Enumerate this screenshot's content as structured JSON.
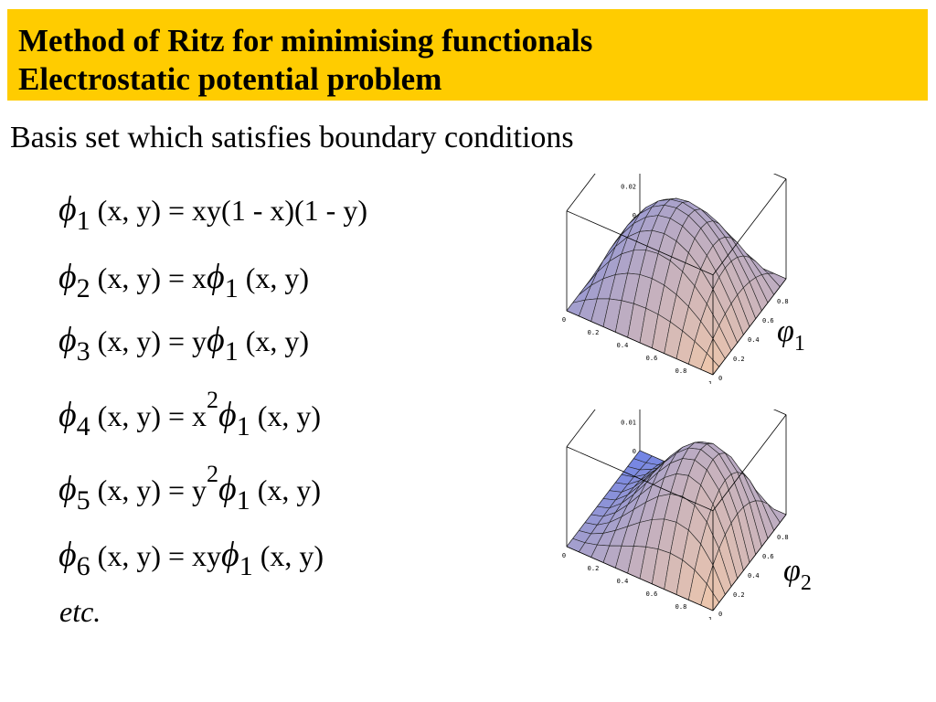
{
  "header": {
    "title_line1": "Method of Ritz for minimising functionals",
    "title_line2": "Electrostatic potential problem",
    "background_color": "#ffcc00"
  },
  "subtitle": "Basis set which satisfies boundary conditions",
  "equations": [
    {
      "sub": "1",
      "lhs": "(x, y) = ",
      "rhs_pre": "xy(1 - x)(1 - y)",
      "rhs_sup": "",
      "rhs_phi_sub": "",
      "rhs_post": ""
    },
    {
      "sub": "2",
      "lhs": "(x, y) = ",
      "rhs_pre": "x",
      "rhs_sup": "",
      "rhs_phi_sub": "1",
      "rhs_post": "(x, y)"
    },
    {
      "sub": "3",
      "lhs": "(x, y) = ",
      "rhs_pre": "y",
      "rhs_sup": "",
      "rhs_phi_sub": "1",
      "rhs_post": "(x, y)"
    },
    {
      "sub": "4",
      "lhs": "(x, y) = ",
      "rhs_pre": "x",
      "rhs_sup": "2",
      "rhs_phi_sub": "1",
      "rhs_post": "(x, y)"
    },
    {
      "sub": "5",
      "lhs": "(x, y) = ",
      "rhs_pre": "y",
      "rhs_sup": "2",
      "rhs_phi_sub": "1",
      "rhs_post": "(x, y)"
    },
    {
      "sub": "6",
      "lhs": "(x, y) = ",
      "rhs_pre": "xy",
      "rhs_sup": "",
      "rhs_phi_sub": "1",
      "rhs_post": "(x, y)"
    }
  ],
  "etc_label": "etc.",
  "plots": [
    {
      "label_sub": "1",
      "z_ticks": [
        "0.06",
        "0.04",
        "0.02",
        "0"
      ],
      "x_ticks": [
        "0",
        "0.2",
        "0.4",
        "0.6",
        "0.8",
        "1"
      ],
      "y_ticks": [
        "1",
        "0.8",
        "0.6",
        "0.4",
        "0.2",
        "0"
      ]
    },
    {
      "label_sub": "2",
      "z_ticks": [
        "0.03",
        "0.02",
        "0.01",
        "0"
      ],
      "x_ticks": [
        "0",
        "0.2",
        "0.4",
        "0.6",
        "0.8",
        "1"
      ],
      "y_ticks": [
        "1",
        "0.8",
        "0.6",
        "0.4",
        "0.2",
        "0"
      ]
    }
  ]
}
